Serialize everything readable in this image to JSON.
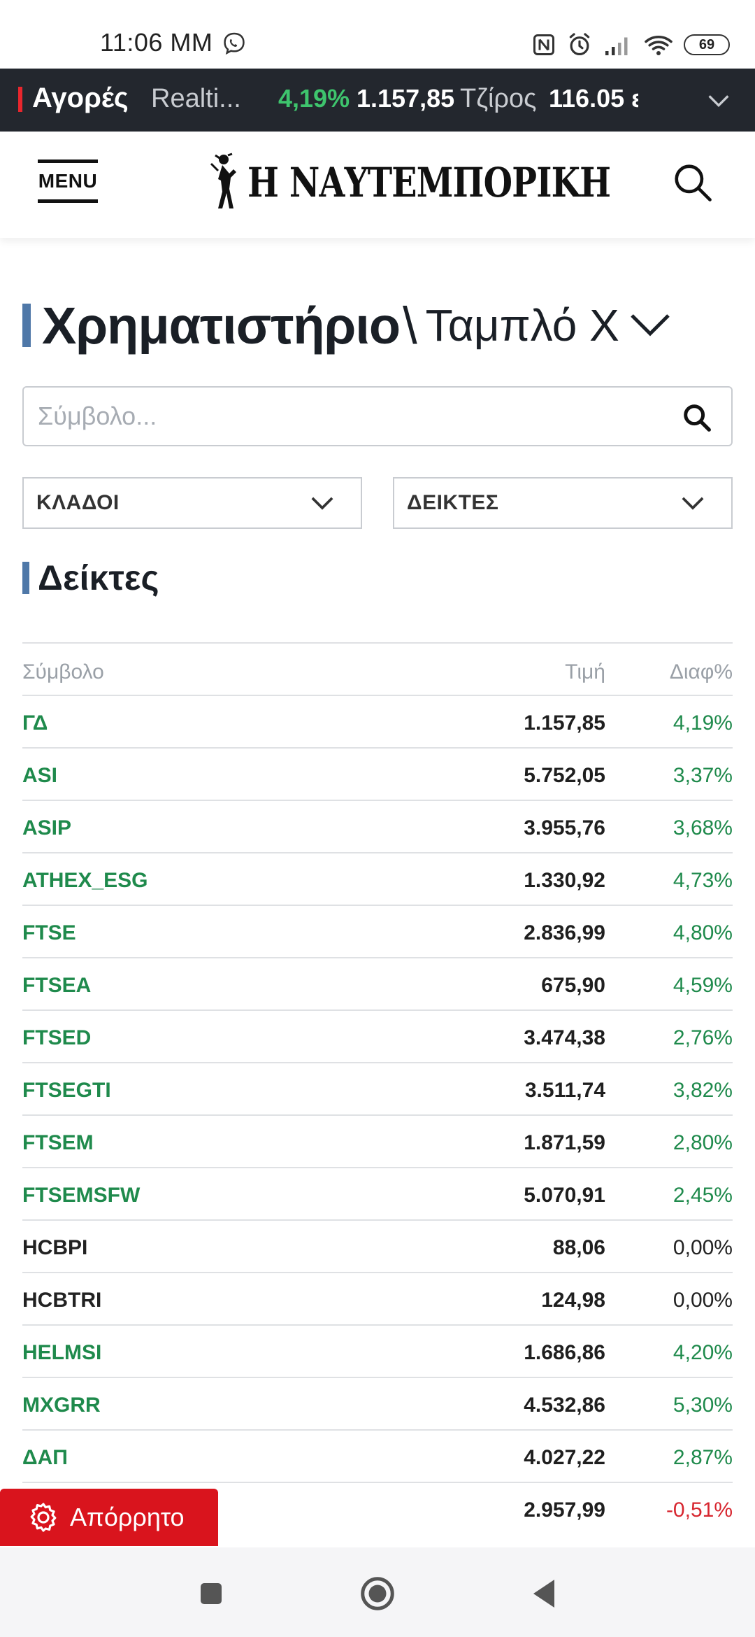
{
  "status_bar": {
    "time": "11:06 ΜΜ",
    "battery": "69"
  },
  "ticker": {
    "markets_label": "Αγορές",
    "index_name": "Realti...",
    "change": "4,19%",
    "value": "1.157,85",
    "turnover_label": "Τζίρος",
    "turnover_value": "116.05 ε"
  },
  "header": {
    "menu_label": "MENU",
    "logo_text": "Η ΝΑΥΤΕΜΠΟΡΙΚΗ"
  },
  "page": {
    "title": "Χρηματιστήριο",
    "separator": "\\",
    "subtitle": "Ταμπλό Χ"
  },
  "search": {
    "placeholder": "Σύμβολο..."
  },
  "filters": {
    "sectors_label": "ΚΛΑΔΟΙ",
    "indices_label": "ΔΕΙΚΤΕΣ"
  },
  "section": {
    "title": "Δείκτες"
  },
  "table": {
    "columns": [
      "Σύμβολο",
      "Τιμή",
      "Διαφ%"
    ],
    "rows": [
      {
        "symbol": "ΓΔ",
        "price": "1.157,85",
        "change": "4,19%",
        "trend": "pos"
      },
      {
        "symbol": "ASI",
        "price": "5.752,05",
        "change": "3,37%",
        "trend": "pos"
      },
      {
        "symbol": "ASIP",
        "price": "3.955,76",
        "change": "3,68%",
        "trend": "pos"
      },
      {
        "symbol": "ATHEX_ESG",
        "price": "1.330,92",
        "change": "4,73%",
        "trend": "pos"
      },
      {
        "symbol": "FTSE",
        "price": "2.836,99",
        "change": "4,80%",
        "trend": "pos"
      },
      {
        "symbol": "FTSEA",
        "price": "675,90",
        "change": "4,59%",
        "trend": "pos"
      },
      {
        "symbol": "FTSED",
        "price": "3.474,38",
        "change": "2,76%",
        "trend": "pos"
      },
      {
        "symbol": "FTSEGTI",
        "price": "3.511,74",
        "change": "3,82%",
        "trend": "pos"
      },
      {
        "symbol": "FTSEM",
        "price": "1.871,59",
        "change": "2,80%",
        "trend": "pos"
      },
      {
        "symbol": "FTSEMSFW",
        "price": "5.070,91",
        "change": "2,45%",
        "trend": "pos"
      },
      {
        "symbol": "HCBPI",
        "price": "88,06",
        "change": "0,00%",
        "trend": "neu"
      },
      {
        "symbol": "HCBTRI",
        "price": "124,98",
        "change": "0,00%",
        "trend": "neu"
      },
      {
        "symbol": "HELMSI",
        "price": "1.686,86",
        "change": "4,20%",
        "trend": "pos"
      },
      {
        "symbol": "MXGRR",
        "price": "4.532,86",
        "change": "5,30%",
        "trend": "pos"
      },
      {
        "symbol": "ΔΑΠ",
        "price": "4.027,22",
        "change": "2,87%",
        "trend": "pos"
      },
      {
        "symbol": "",
        "price": "2.957,99",
        "change": "-0,51%",
        "trend": "neg"
      }
    ]
  },
  "privacy_button": {
    "label": "Απόρρητο"
  },
  "colors": {
    "ticker_bg": "#23272e",
    "positive": "#1f8a4c",
    "negative": "#d7262f",
    "accent_blue": "#4f78a8",
    "privacy_red": "#d9141d"
  }
}
